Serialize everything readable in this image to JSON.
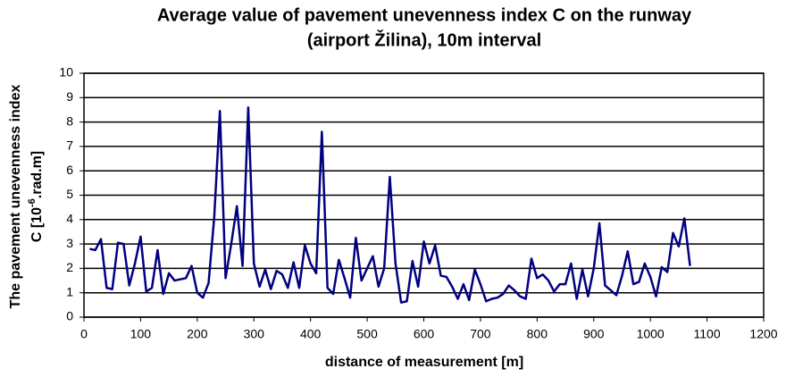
{
  "chart_data": {
    "type": "line",
    "title": [
      "Average value of pavement unevenness index C on the runway",
      "(airport Žilina), 10m interval"
    ],
    "xlabel": "distance of measurement [m]",
    "ylabel": {
      "line1": "The pavement unevenness index",
      "line2": "C  [10",
      "sup": "-6",
      "end": ".rad.m]"
    },
    "x": [
      10,
      20,
      30,
      40,
      50,
      60,
      70,
      80,
      90,
      100,
      110,
      120,
      130,
      140,
      150,
      160,
      170,
      180,
      190,
      200,
      210,
      220,
      230,
      240,
      250,
      260,
      270,
      280,
      290,
      300,
      310,
      320,
      330,
      340,
      350,
      360,
      370,
      380,
      390,
      400,
      410,
      420,
      430,
      440,
      450,
      460,
      470,
      480,
      490,
      500,
      510,
      520,
      530,
      540,
      550,
      560,
      570,
      580,
      590,
      600,
      610,
      620,
      630,
      640,
      650,
      660,
      670,
      680,
      690,
      700,
      710,
      720,
      730,
      740,
      750,
      760,
      770,
      780,
      790,
      800,
      810,
      820,
      830,
      840,
      850,
      860,
      870,
      880,
      890,
      900,
      910,
      920,
      930,
      940,
      950,
      960,
      970,
      980,
      990,
      1000,
      1010,
      1020,
      1030,
      1040,
      1050,
      1060,
      1070
    ],
    "values": [
      2.8,
      2.75,
      3.2,
      1.2,
      1.15,
      3.05,
      3.0,
      1.3,
      2.2,
      3.3,
      1.05,
      1.2,
      2.75,
      0.95,
      1.8,
      1.5,
      1.55,
      1.6,
      2.1,
      1.0,
      0.8,
      1.4,
      4.1,
      8.45,
      1.6,
      3.0,
      4.55,
      2.1,
      8.6,
      2.2,
      1.25,
      1.95,
      1.15,
      1.9,
      1.75,
      1.2,
      2.25,
      1.2,
      2.95,
      2.2,
      1.8,
      7.6,
      1.2,
      0.95,
      2.35,
      1.6,
      0.8,
      3.25,
      1.5,
      2.0,
      2.5,
      1.25,
      2.0,
      5.75,
      2.2,
      0.6,
      0.65,
      2.3,
      1.25,
      3.1,
      2.2,
      2.95,
      1.7,
      1.65,
      1.25,
      0.75,
      1.35,
      0.7,
      1.95,
      1.35,
      0.65,
      0.75,
      0.8,
      0.95,
      1.3,
      1.1,
      0.85,
      0.75,
      2.4,
      1.6,
      1.75,
      1.5,
      1.05,
      1.35,
      1.35,
      2.2,
      0.75,
      1.95,
      0.85,
      2.0,
      3.85,
      1.3,
      1.1,
      0.9,
      1.7,
      2.7,
      1.35,
      1.45,
      2.2,
      1.65,
      0.85,
      2.05,
      1.85,
      3.45,
      2.9,
      4.05,
      2.1
    ],
    "color": "#000080",
    "xlim": [
      0,
      1200
    ],
    "xticks": [
      0,
      100,
      200,
      300,
      400,
      500,
      600,
      700,
      800,
      900,
      1000,
      1100,
      1200
    ],
    "ylim": [
      0,
      10
    ],
    "yticks": [
      0,
      1,
      2,
      3,
      4,
      5,
      6,
      7,
      8,
      9,
      10
    ],
    "grid": true
  }
}
